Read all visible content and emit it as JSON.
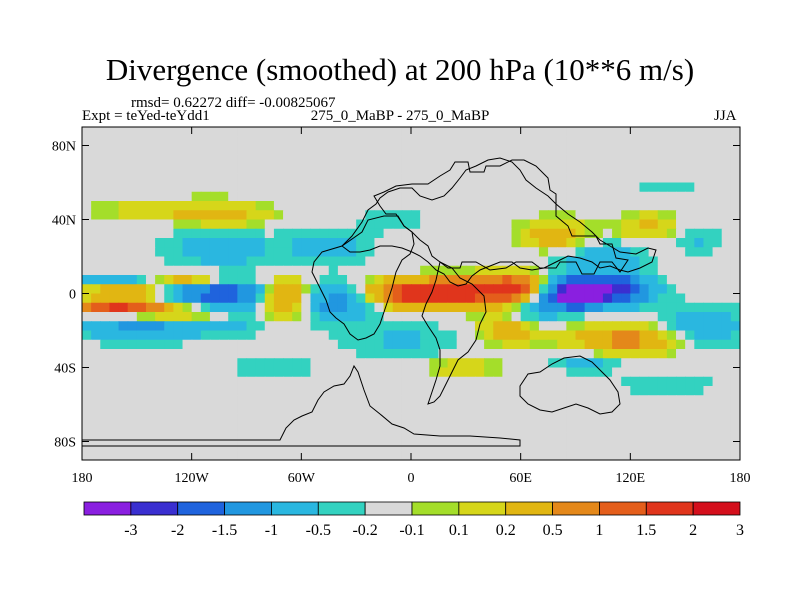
{
  "header": {
    "title": "Divergence (smoothed) at 200 hPa (10**6 m/s)",
    "stats": "rmsd= 0.62272 diff= -0.00825067",
    "expt": "Expt = teYed-teYdd1",
    "subtitle": "275_0_MaBP - 275_0_MaBP",
    "season": "JJA"
  },
  "chart_data": {
    "type": "heatmap",
    "title": "Divergence (smoothed) at 200 hPa (10**6 m/s)",
    "xlabel": "",
    "ylabel": "",
    "xlim": [
      -180,
      180
    ],
    "ylim": [
      -90,
      90
    ],
    "x_ticks": [
      {
        "value": -180,
        "label": "180"
      },
      {
        "value": -120,
        "label": "120W"
      },
      {
        "value": -60,
        "label": "60W"
      },
      {
        "value": 0,
        "label": "0"
      },
      {
        "value": 60,
        "label": "60E"
      },
      {
        "value": 120,
        "label": "120E"
      },
      {
        "value": 180,
        "label": "180"
      }
    ],
    "y_ticks": [
      {
        "value": 80,
        "label": "80N"
      },
      {
        "value": 40,
        "label": "40N"
      },
      {
        "value": 0,
        "label": "0"
      },
      {
        "value": -40,
        "label": "40S"
      },
      {
        "value": -80,
        "label": "80S"
      }
    ],
    "colorbar": {
      "colors": [
        "#8a1fe0",
        "#3a2fd0",
        "#1f63dd",
        "#2197e0",
        "#2ab7e0",
        "#33d2c0",
        "#d9d9d9",
        "#a4de2a",
        "#d6d61a",
        "#e1b612",
        "#e4881a",
        "#e45e1b",
        "#e0351c",
        "#d40f1c"
      ],
      "labels": [
        "-3",
        "-2",
        "-1.5",
        "-1",
        "-0.5",
        "-0.2",
        "-0.1",
        "0.1",
        "0.2",
        "0.5",
        "1",
        "1.5",
        "2",
        "3"
      ]
    },
    "blobs": [
      {
        "lon": -140,
        "lat": 8,
        "rlon": 38,
        "rlat": 4,
        "amp": -1.0
      },
      {
        "lon": -150,
        "lat": 0,
        "rlon": 28,
        "rlat": 3.5,
        "amp": 2.0
      },
      {
        "lon": -125,
        "lat": 8,
        "rlon": 28,
        "rlat": 4,
        "amp": 2.0
      },
      {
        "lon": -160,
        "lat": -8,
        "rlon": 25,
        "rlat": 3.5,
        "amp": 2.0
      },
      {
        "lon": -122,
        "lat": -10,
        "rlon": 30,
        "rlat": 3.5,
        "amp": 1.5
      },
      {
        "lon": -118,
        "lat": 0,
        "rlon": 45,
        "rlat": 8,
        "amp": -1.2
      },
      {
        "lon": -100,
        "lat": -5,
        "rlon": 30,
        "rlat": 15,
        "amp": -0.7
      },
      {
        "lon": -150,
        "lat": -18,
        "rlon": 35,
        "rlat": 8,
        "amp": -0.8
      },
      {
        "lon": -105,
        "lat": 25,
        "rlon": 30,
        "rlat": 10,
        "amp": -0.6
      },
      {
        "lon": -140,
        "lat": 45,
        "rlon": 30,
        "rlat": 6,
        "amp": 0.4
      },
      {
        "lon": -100,
        "lat": 42,
        "rlon": 25,
        "rlat": 8,
        "amp": 0.5
      },
      {
        "lon": -45,
        "lat": 25,
        "rlon": 25,
        "rlat": 10,
        "amp": -0.5
      },
      {
        "lon": -70,
        "lat": -2,
        "rlon": 15,
        "rlat": 10,
        "amp": 1.5
      },
      {
        "lon": -40,
        "lat": -5,
        "rlon": 20,
        "rlat": 10,
        "amp": -1.0
      },
      {
        "lon": -75,
        "lat": -40,
        "rlon": 20,
        "rlat": 6,
        "amp": -0.4
      },
      {
        "lon": -5,
        "lat": -25,
        "rlon": 35,
        "rlat": 10,
        "amp": -0.4
      },
      {
        "lon": 10,
        "lat": 0,
        "rlon": 30,
        "rlat": 7,
        "amp": 2.5
      },
      {
        "lon": 55,
        "lat": 2,
        "rlon": 22,
        "rlat": 8,
        "amp": 2.0
      },
      {
        "lon": 55,
        "lat": -20,
        "rlon": 20,
        "rlat": 8,
        "amp": 0.6
      },
      {
        "lon": 70,
        "lat": -5,
        "rlon": 15,
        "rlat": 10,
        "amp": -1.0
      },
      {
        "lon": 90,
        "lat": 0,
        "rlon": 14,
        "rlat": 7,
        "amp": -3.5
      },
      {
        "lon": 112,
        "lat": 2,
        "rlon": 20,
        "rlat": 8,
        "amp": -2.0
      },
      {
        "lon": 100,
        "lat": 20,
        "rlon": 30,
        "rlat": 10,
        "amp": -0.6
      },
      {
        "lon": 80,
        "lat": 30,
        "rlon": 20,
        "rlat": 10,
        "amp": 0.7
      },
      {
        "lon": 120,
        "lat": -25,
        "rlon": 30,
        "rlat": 8,
        "amp": 1.0
      },
      {
        "lon": 160,
        "lat": -18,
        "rlon": 25,
        "rlat": 12,
        "amp": -0.7
      },
      {
        "lon": 130,
        "lat": 35,
        "rlon": 18,
        "rlat": 8,
        "amp": 0.5
      },
      {
        "lon": 158,
        "lat": 30,
        "rlon": 14,
        "rlat": 8,
        "amp": -0.4
      },
      {
        "lon": 95,
        "lat": -38,
        "rlon": 20,
        "rlat": 5,
        "amp": -0.5
      },
      {
        "lon": -10,
        "lat": 40,
        "rlon": 15,
        "rlat": 6,
        "amp": -0.4
      },
      {
        "lon": 28,
        "lat": -40,
        "rlon": 20,
        "rlat": 5,
        "amp": 0.4
      },
      {
        "lon": 140,
        "lat": -50,
        "rlon": 25,
        "rlat": 6,
        "amp": -0.4
      },
      {
        "lon": 140,
        "lat": 56,
        "rlon": 20,
        "rlat": 4,
        "amp": -0.3
      }
    ]
  }
}
